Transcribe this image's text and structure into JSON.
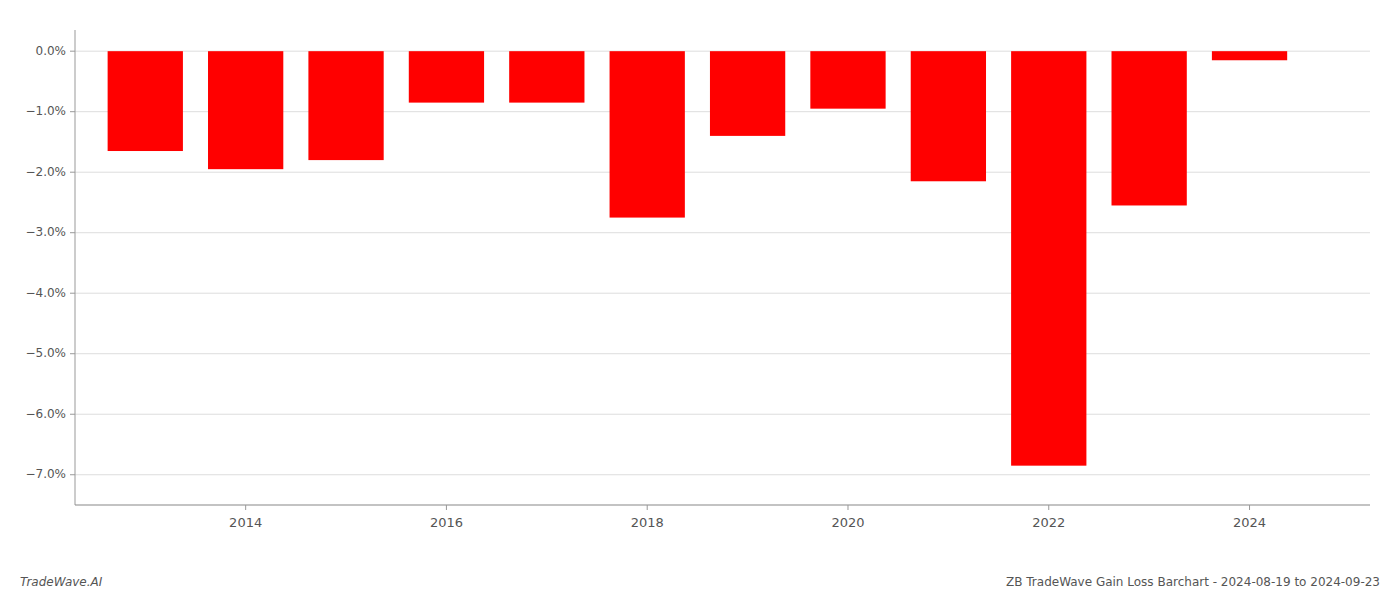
{
  "chart_data": {
    "type": "bar",
    "x": [
      2013,
      2014,
      2015,
      2016,
      2017,
      2018,
      2019,
      2020,
      2021,
      2022,
      2023,
      2024
    ],
    "values": [
      -1.65,
      -1.95,
      -1.8,
      -0.85,
      -0.85,
      -2.75,
      -1.4,
      -0.95,
      -2.15,
      -6.85,
      -2.55,
      -0.15
    ],
    "color": "#ff0000",
    "xlim": [
      2012.3,
      2025.2
    ],
    "xticks": [
      2014,
      2016,
      2018,
      2020,
      2022,
      2024
    ],
    "ylim": [
      -7.5,
      0.35
    ],
    "yticks": [
      {
        "value": 0.0,
        "label": "0.0%"
      },
      {
        "value": -1.0,
        "label": "−1.0%"
      },
      {
        "value": -2.0,
        "label": "−2.0%"
      },
      {
        "value": -3.0,
        "label": "−3.0%"
      },
      {
        "value": -4.0,
        "label": "−4.0%"
      },
      {
        "value": -5.0,
        "label": "−5.0%"
      },
      {
        "value": -6.0,
        "label": "−6.0%"
      },
      {
        "value": -7.0,
        "label": "−7.0%"
      }
    ],
    "grid": true,
    "annotations": [
      "TradeWave.AI",
      "ZB TradeWave Gain Loss Barchart - 2024-08-19 to 2024-09-23"
    ]
  }
}
